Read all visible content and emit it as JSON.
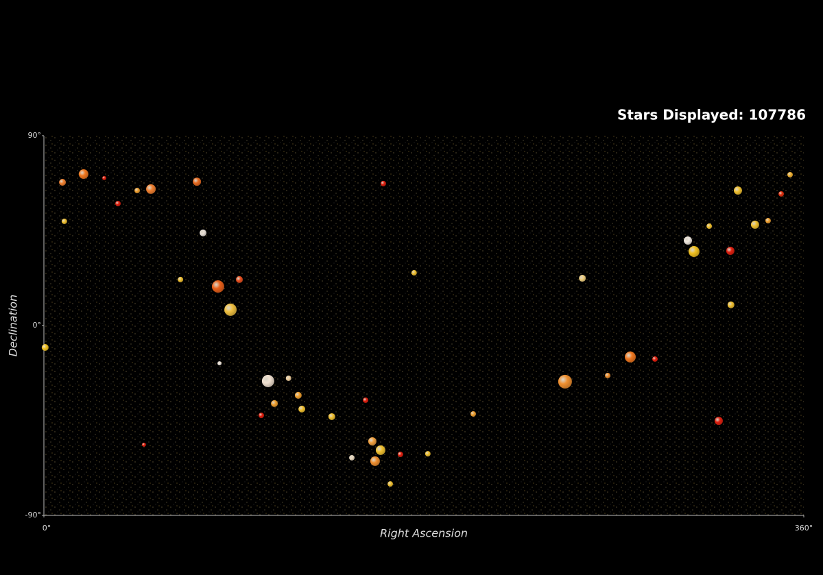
{
  "chart_data": {
    "type": "scatter",
    "title": "Stars Displayed: 107786",
    "x_label": "Right Ascension",
    "y_label": "Declination",
    "xlim": [
      0,
      360
    ],
    "ylim": [
      -90,
      90
    ],
    "xticks": [
      {
        "value": 0,
        "label": "0°"
      },
      {
        "value": 360,
        "label": "360°"
      }
    ],
    "yticks": [
      {
        "value": -90,
        "label": "-90°"
      },
      {
        "value": 0,
        "label": "0°"
      },
      {
        "value": 90,
        "label": "90°"
      }
    ],
    "grid": false,
    "series": [
      {
        "x": [
          18.8,
          50.7,
          72.5,
          8.8,
          82.5,
          88.4,
          106.2,
          75.4,
          92.6,
          246.9,
          277.8,
          308.0,
          305.1,
          325.2,
          328.8,
          336.9,
          319.7,
          156.9,
          159.5,
          155.6,
          0.6,
          160.8,
          152.4,
          103.0,
          325.5,
          255.1,
          109.2,
          120.5,
          136.4,
          353.5,
          349.3,
          47.4,
          164.1,
          145.9,
          28.6,
          64.7,
          35.1,
          122.2,
          115.9,
          175.4,
          203.4,
          9.7,
          168.9,
          181.9,
          267.1,
          315.2,
          44.2,
          343.1,
          83.2,
          289.5
        ],
        "values": [
          71.8,
          64.7,
          68.2,
          67.9,
          18.5,
          7.5,
          -26.3,
          43.9,
          21.8,
          -26.6,
          -14.9,
          35.1,
          40.3,
          35.4,
          64.0,
          47.8,
          -45.2,
          -64.3,
          -59.1,
          -54.9,
          -10.4,
          67.3,
          -35.4,
          -42.6,
          9.8,
          22.4,
          -37.0,
          -33.1,
          -43.2,
          71.5,
          62.4,
          -56.5,
          -75.1,
          -62.7,
          69.9,
          21.8,
          57.8,
          -39.6,
          -25.0,
          25.0,
          -41.9,
          49.4,
          -61.1,
          -60.8,
          -23.7,
          47.1,
          64.0,
          49.7,
          -17.9,
          -15.9
        ],
        "sizes": [
          7,
          7,
          6,
          5,
          9,
          9,
          9,
          5,
          5,
          10,
          8,
          8,
          6,
          6,
          6,
          6,
          6,
          7,
          7,
          6,
          5,
          4,
          4,
          4,
          5,
          5,
          5,
          5,
          5,
          4,
          4,
          3,
          4,
          4,
          3,
          4,
          4,
          5,
          4,
          4,
          4,
          4,
          4,
          4,
          4,
          4,
          4,
          4,
          3,
          4
        ],
        "colors": [
          "#f07820",
          "#f08030",
          "#e86a20",
          "#f08030",
          "#e8601a",
          "#f0c040",
          "#f0e0d0",
          "#e8e0d8",
          "#e85020",
          "#f09030",
          "#f07820",
          "#f0c020",
          "#f0e8e0",
          "#e02010",
          "#f0c030",
          "#f0c030",
          "#e02010",
          "#f09030",
          "#f0c030",
          "#f0a040",
          "#f0c020",
          "#e02010",
          "#e02010",
          "#e02010",
          "#f0c030",
          "#f0d080",
          "#f0a030",
          "#f0a030",
          "#f0c030",
          "#f0b030",
          "#e03010",
          "#e02010",
          "#f0c030",
          "#e8d8c0",
          "#e02010",
          "#f0c030",
          "#e02010",
          "#f0c030",
          "#f0d0a0",
          "#f0c030",
          "#f0a030",
          "#f0c030",
          "#e02010",
          "#f0c030",
          "#f09030",
          "#f0c030",
          "#f0a030",
          "#f0a030",
          "#f0e8e0",
          "#e02010"
        ]
      }
    ]
  }
}
